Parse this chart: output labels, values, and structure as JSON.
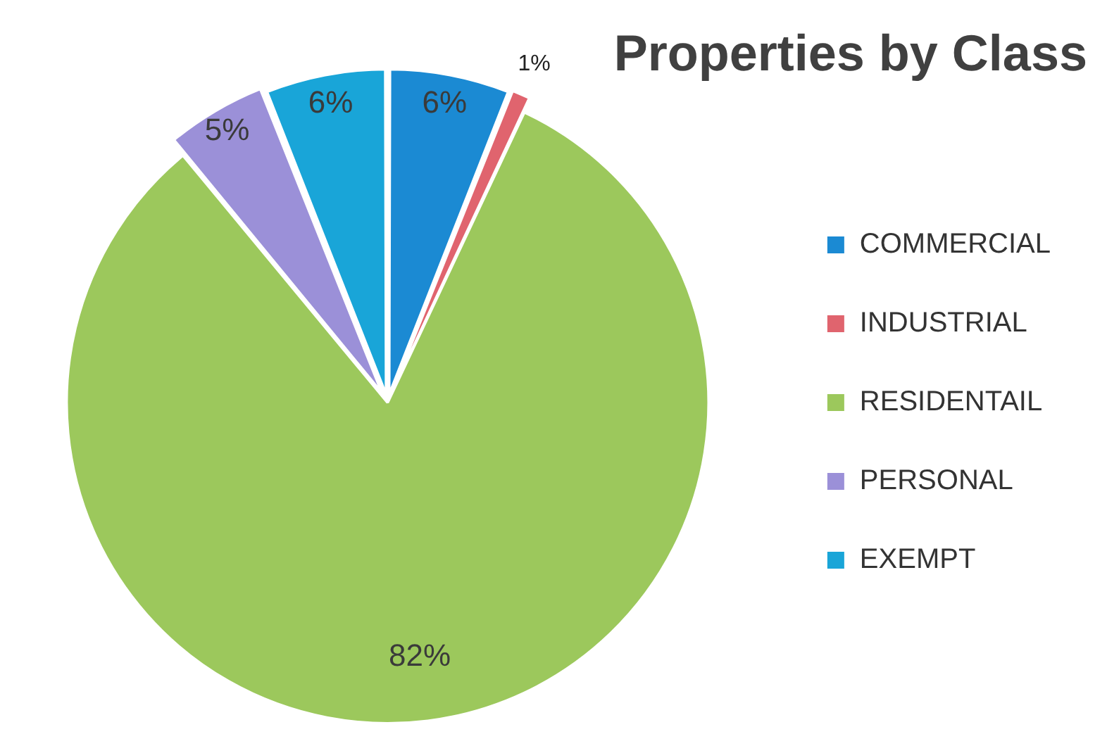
{
  "chart_data": {
    "type": "pie",
    "title": "Properties by Class",
    "categories": [
      "COMMERCIAL",
      "INDUSTRIAL",
      "RESIDENTAIL",
      "PERSONAL",
      "EXEMPT"
    ],
    "values": [
      6,
      1,
      82,
      5,
      6
    ],
    "colors": [
      "#1b8ad3",
      "#e0646e",
      "#9cc85c",
      "#9b90d8",
      "#19a5d8"
    ],
    "value_labels": [
      "6%",
      "1%",
      "82%",
      "5%",
      "6%"
    ],
    "legend": "right"
  }
}
